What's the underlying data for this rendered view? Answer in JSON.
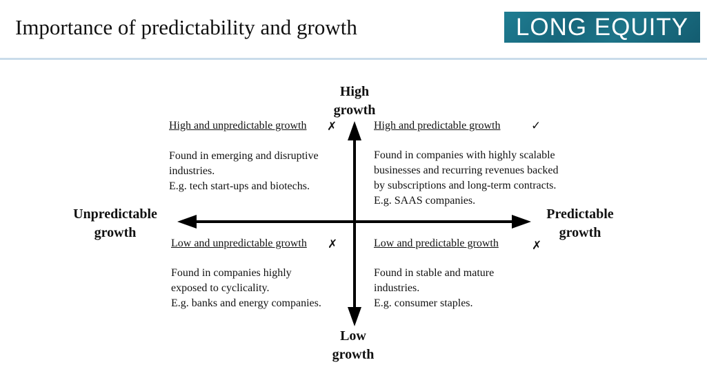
{
  "header": {
    "title": "Importance of predictability and growth",
    "logo_text": "LONG EQUITY",
    "logo_color": "#1a6f84",
    "divider_color": "#c9dcea"
  },
  "axes": {
    "top": [
      "High",
      "growth"
    ],
    "bottom": [
      "Low",
      "growth"
    ],
    "left": [
      "Unpredictable",
      "growth"
    ],
    "right": [
      "Predictable",
      "growth"
    ]
  },
  "quadrants": {
    "top_left": {
      "heading": "High and unpredictable growth",
      "mark": "✗",
      "mark_icon": "cross-icon",
      "lines": [
        "Found in emerging and disruptive",
        "industries.",
        "E.g. tech start-ups and biotechs."
      ]
    },
    "top_right": {
      "heading": "High and predictable growth",
      "mark": "✓",
      "mark_icon": "check-icon",
      "lines": [
        "Found in companies with highly scalable",
        "businesses and recurring revenues backed",
        "by subscriptions and long-term contracts.",
        "E.g. SAAS companies."
      ]
    },
    "bottom_left": {
      "heading": "Low and unpredictable growth",
      "mark": "✗",
      "mark_icon": "cross-icon",
      "lines": [
        "Found in companies highly",
        "exposed to cyclicality.",
        "E.g. banks and energy companies."
      ]
    },
    "bottom_right": {
      "heading": "Low and predictable growth",
      "mark": "✗",
      "mark_icon": "cross-icon",
      "lines": [
        "Found in stable and mature",
        "industries.",
        "E.g. consumer staples."
      ]
    }
  }
}
